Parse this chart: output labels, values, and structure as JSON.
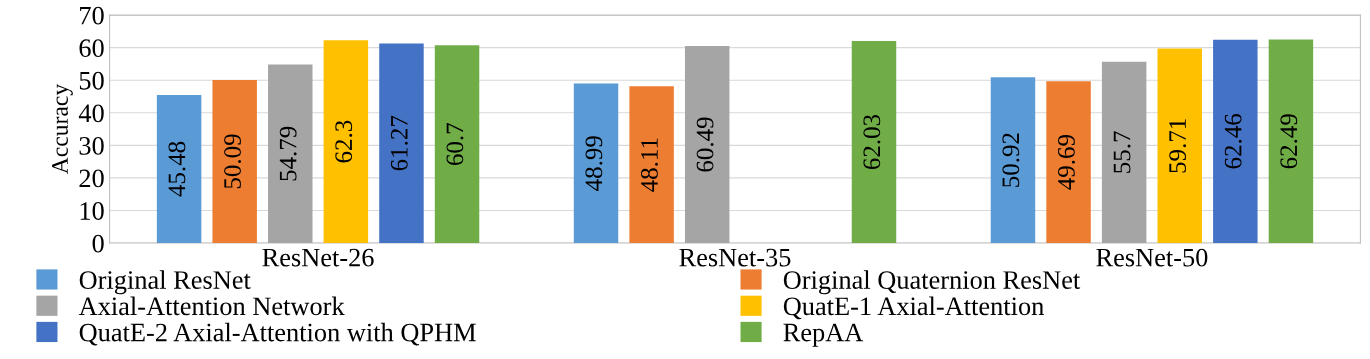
{
  "chart_data": {
    "type": "bar",
    "ylabel": "Accuracy",
    "categories": [
      "ResNet-26",
      "ResNet-35",
      "ResNet-50"
    ],
    "series": [
      {
        "name": "Original ResNet",
        "color": "#5b9bd5",
        "values": [
          45.48,
          48.99,
          50.92
        ]
      },
      {
        "name": "Original Quaternion ResNet",
        "color": "#ed7d31",
        "values": [
          50.09,
          48.11,
          49.69
        ]
      },
      {
        "name": "Axial-Attention Network",
        "color": "#a5a5a5",
        "values": [
          54.79,
          60.49,
          55.7
        ]
      },
      {
        "name": "QuatE-1 Axial-Attention",
        "color": "#ffc000",
        "values": [
          62.3,
          null,
          59.71
        ]
      },
      {
        "name": "QuatE-2 Axial-Attention with QPHM",
        "color": "#4472c4",
        "values": [
          61.27,
          null,
          62.46
        ]
      },
      {
        "name": "RepAA",
        "color": "#70ad47",
        "values": [
          60.7,
          62.03,
          62.49
        ]
      }
    ],
    "ylim": [
      0,
      70
    ],
    "yticks": [
      0,
      10,
      20,
      30,
      40,
      50,
      60,
      70
    ],
    "grid": "y",
    "legend": "bottom",
    "data_labels": true
  }
}
